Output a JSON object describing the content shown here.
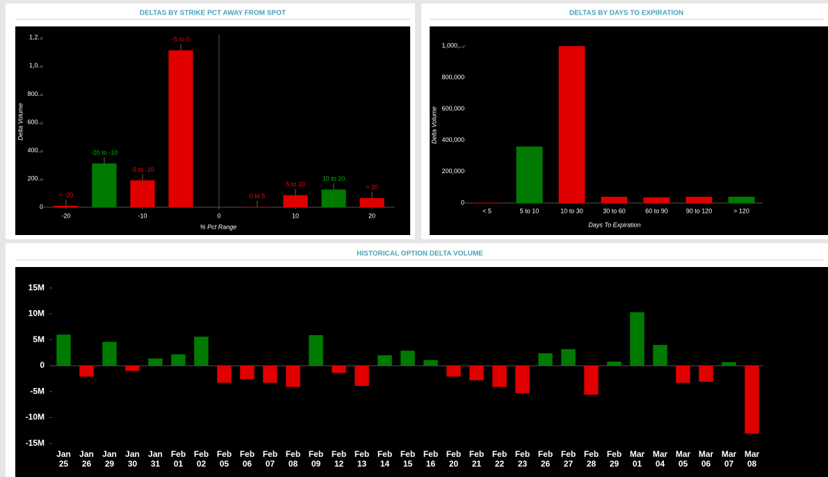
{
  "chart_data": [
    {
      "type": "bar",
      "title": "DELTAS BY STRIKE PCT AWAY FROM SPOT",
      "x_label": "% Pct Range",
      "y_label": "Delta Volume",
      "categories": [
        "< -20",
        "-20 to -10",
        "-5 to -10",
        "-5 to 0",
        "0 to 5",
        "5 to 10",
        "10 to 20",
        "> 20"
      ],
      "x": [
        -20,
        -15,
        -10,
        -5,
        5,
        10,
        15,
        20
      ],
      "values": [
        10000,
        310000,
        190000,
        1110000,
        2000,
        85000,
        125000,
        65000
      ],
      "colors": [
        "#e00000",
        "#007a00",
        "#e00000",
        "#e00000",
        "#e00000",
        "#e00000",
        "#007a00",
        "#e00000"
      ],
      "xlim": [
        -23,
        23
      ],
      "xticks": [
        -20,
        -10,
        0,
        10,
        20
      ],
      "ylim": [
        0,
        1220000
      ],
      "yticks": [
        0,
        {
          "value": 200000,
          "label": "200..."
        },
        {
          "value": 400000,
          "label": "400..."
        },
        {
          "value": 600000,
          "label": "600..."
        },
        {
          "value": 800000,
          "label": "800..."
        },
        {
          "value": 1000000,
          "label": "1,0..."
        },
        {
          "value": 1200000,
          "label": "1,2..."
        }
      ]
    },
    {
      "type": "bar",
      "title": "DELTAS BY DAYS TO EXPIRATION",
      "x_label": "Days To Expiration",
      "y_label": "Delta Volume",
      "categories": [
        "< 5",
        "5 to 10",
        "10 to 30",
        "30 to 60",
        "60 to 90",
        "90 to 120",
        "> 120"
      ],
      "values": [
        2000,
        360000,
        1000000,
        40000,
        36000,
        40000,
        40000
      ],
      "colors": [
        "#e00000",
        "#007a00",
        "#e00000",
        "#e00000",
        "#e00000",
        "#e00000",
        "#007a00"
      ],
      "ylim": [
        0,
        1050000
      ],
      "yticks": [
        0,
        {
          "value": 200000,
          "label": "200,000"
        },
        {
          "value": 400000,
          "label": "400,000"
        },
        {
          "value": 600000,
          "label": "600,000"
        },
        {
          "value": 800000,
          "label": "800,000"
        },
        {
          "value": 1000000,
          "label": "1,000,..."
        }
      ]
    },
    {
      "type": "bar",
      "title": "HISTORICAL OPTION DELTA VOLUME",
      "categories": [
        "Jan 25",
        "Jan 26",
        "Jan 29",
        "Jan 30",
        "Jan 31",
        "Feb 01",
        "Feb 02",
        "Feb 05",
        "Feb 06",
        "Feb 07",
        "Feb 08",
        "Feb 09",
        "Feb 12",
        "Feb 13",
        "Feb 14",
        "Feb 15",
        "Feb 16",
        "Feb 20",
        "Feb 21",
        "Feb 22",
        "Feb 23",
        "Feb 26",
        "Feb 27",
        "Feb 28",
        "Feb 29",
        "Mar 01",
        "Mar 04",
        "Mar 05",
        "Mar 06",
        "Mar 07",
        "Mar 08"
      ],
      "values": [
        6000000,
        -2100000,
        4600000,
        -1000000,
        1400000,
        2200000,
        5600000,
        -3300000,
        -2600000,
        -3300000,
        -4100000,
        5900000,
        -1400000,
        -3900000,
        2000000,
        2900000,
        1100000,
        -2100000,
        -2800000,
        -4100000,
        -5300000,
        2400000,
        3200000,
        -5600000,
        800000,
        10300000,
        4000000,
        -3300000,
        -3100000,
        700000,
        -13100000
      ],
      "positive_color": "#007a00",
      "negative_color": "#e00000",
      "ylim": [
        -16500000,
        18500000
      ],
      "yticks": [
        {
          "value": -15000000,
          "label": "-15M"
        },
        {
          "value": -10000000,
          "label": "-10M"
        },
        {
          "value": -5000000,
          "label": "-5M"
        },
        0,
        {
          "value": 5000000,
          "label": "5M"
        },
        {
          "value": 10000000,
          "label": "10M"
        },
        {
          "value": 15000000,
          "label": "15M"
        }
      ]
    }
  ]
}
